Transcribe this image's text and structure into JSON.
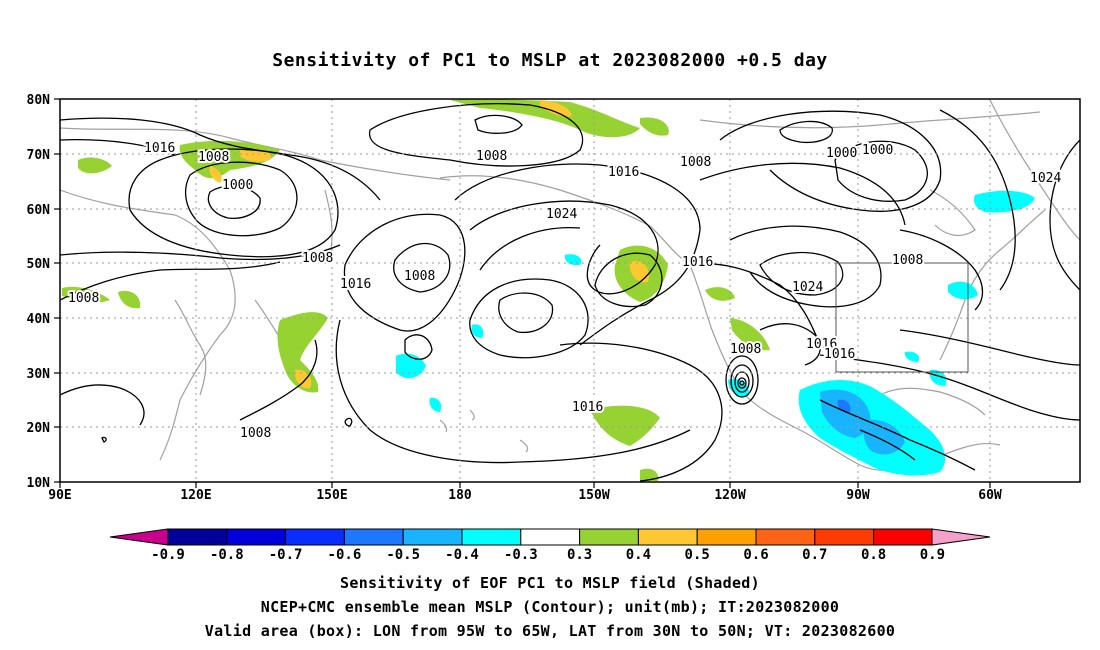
{
  "title": "Sensitivity of PC1 to MSLP at 2023082000 +0.5 day",
  "lat_labels": [
    "80N",
    "70N",
    "60N",
    "50N",
    "40N",
    "30N",
    "20N",
    "10N"
  ],
  "lon_labels": [
    "90E",
    "120E",
    "150E",
    "180",
    "150W",
    "120W",
    "90W",
    "60W"
  ],
  "contour_labels": [
    "1016",
    "1008",
    "1000",
    "1008",
    "1008",
    "1000",
    "1000",
    "1024",
    "1016",
    "1024",
    "1008",
    "1016",
    "1008",
    "1016",
    "1008",
    "1024",
    "1008",
    "1016",
    "1016",
    "1016",
    "1008",
    "1008"
  ],
  "colorbar": {
    "labels": [
      "-0.9",
      "-0.8",
      "-0.7",
      "-0.6",
      "-0.5",
      "-0.4",
      "-0.3",
      "0.3",
      "0.4",
      "0.5",
      "0.6",
      "0.7",
      "0.8",
      "0.9"
    ],
    "colors": [
      "#00009b",
      "#0000dc",
      "#0a2cff",
      "#1e78ff",
      "#18b4ff",
      "#00ffff",
      "#ffffff",
      "#96d232",
      "#ffc832",
      "#ffa000",
      "#ff6414",
      "#ff3c00",
      "#ff0000"
    ],
    "low_end_color": "#c8008c",
    "high_end_color": "#f5a0c8"
  },
  "captions": [
    "Sensitivity of EOF PC1 to MSLP field (Shaded)",
    "NCEP+CMC ensemble mean MSLP (Contour); unit(mb); IT:2023082000",
    "Valid area (box): LON from 95W to 65W, LAT from 30N to 50N; VT: 2023082600"
  ],
  "valid_box": {
    "lon_min": -95,
    "lon_max": -65,
    "lat_min": 30,
    "lat_max": 50
  },
  "colors": {
    "contour": "#000000",
    "coast": "#a0a0a0",
    "grid": "#9a9a9a"
  }
}
